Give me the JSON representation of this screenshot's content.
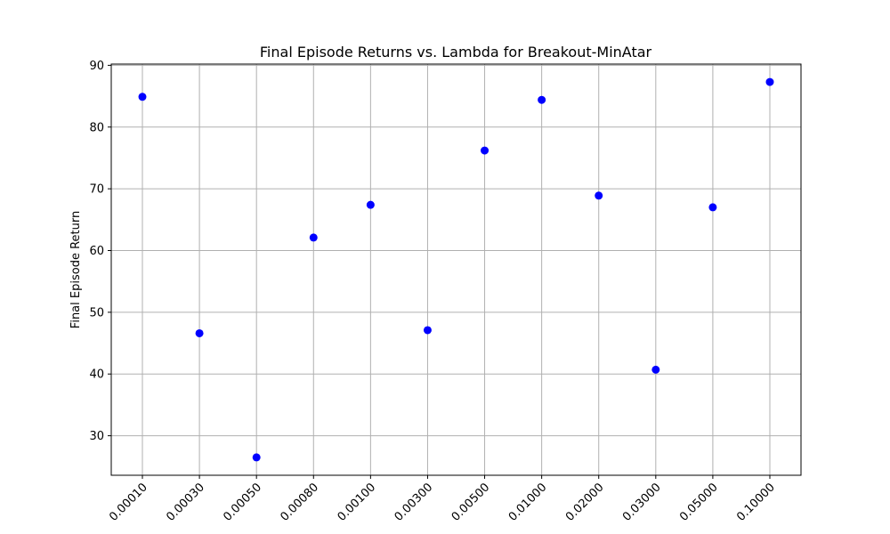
{
  "chart_data": {
    "type": "scatter",
    "title": "Final Episode Returns vs. Lambda for Breakout-MinAtar",
    "xlabel": "",
    "ylabel": "Final Episode Return",
    "categories": [
      "0.00010",
      "0.00030",
      "0.00050",
      "0.00080",
      "0.00100",
      "0.00300",
      "0.00500",
      "0.01000",
      "0.02000",
      "0.03000",
      "0.05000",
      "0.10000"
    ],
    "series": [
      {
        "values": [
          84.9,
          46.6,
          26.5,
          62.1,
          67.4,
          47.1,
          76.2,
          84.4,
          68.9,
          40.7,
          67.0,
          87.3
        ],
        "color": "#0000ff"
      }
    ],
    "yticks": [
      30,
      40,
      50,
      60,
      70,
      80,
      90
    ],
    "ylim": [
      23.6,
      90.2
    ],
    "grid": true,
    "x_tick_rotation": 45
  }
}
